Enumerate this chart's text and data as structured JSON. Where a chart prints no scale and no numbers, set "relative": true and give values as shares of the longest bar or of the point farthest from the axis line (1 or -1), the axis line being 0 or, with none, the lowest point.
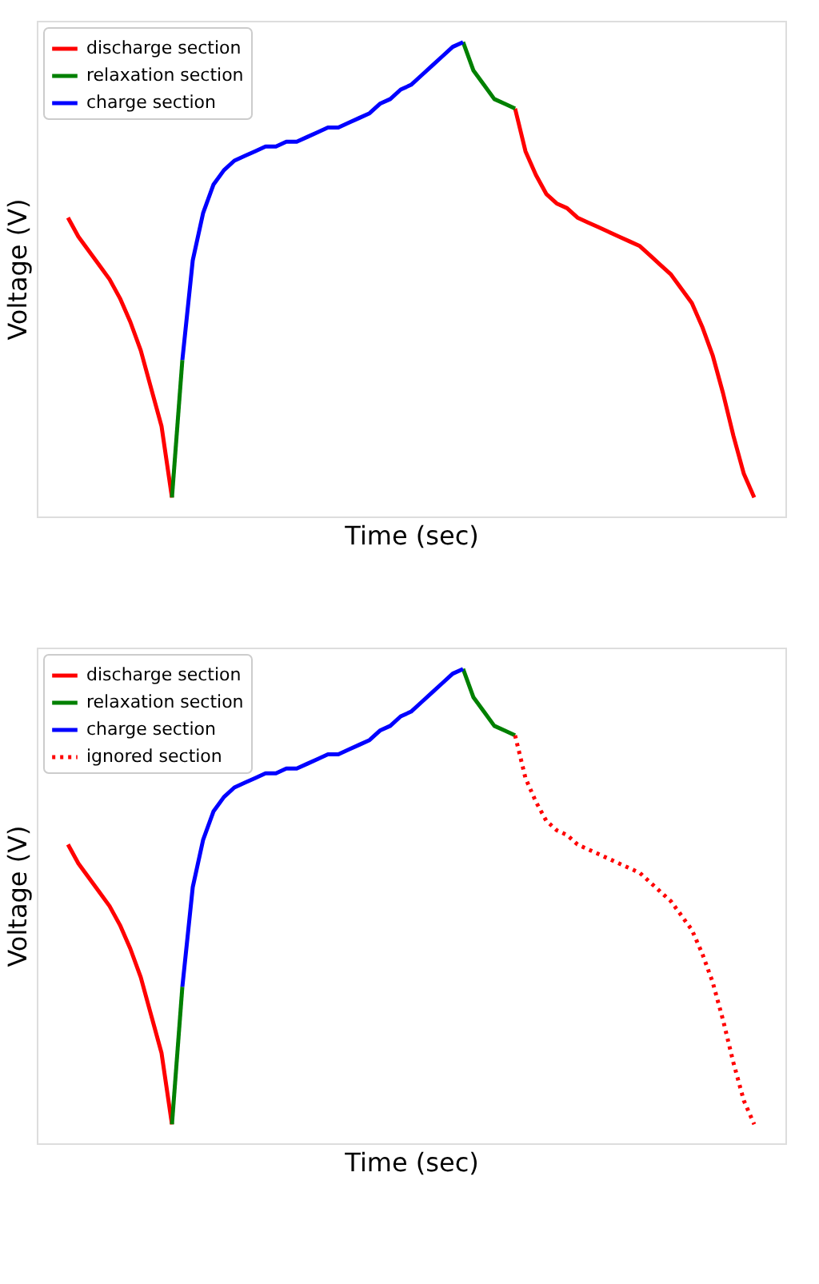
{
  "chart_data": [
    {
      "type": "line",
      "relative": true,
      "xlabel": "Time (sec)",
      "ylabel": "Voltage (V)",
      "legend": "top left",
      "grid": false,
      "tick_labels": false,
      "categories": [
        null,
        null,
        null,
        null,
        null,
        null,
        null,
        null,
        null,
        null,
        null,
        null,
        null,
        null,
        null,
        null,
        null,
        null,
        null,
        null,
        null,
        null,
        null,
        null,
        null,
        null,
        null,
        null,
        null,
        null,
        null,
        null,
        null,
        null,
        null,
        null,
        null,
        null,
        null,
        null,
        null,
        null,
        null,
        null,
        null,
        null,
        null,
        null,
        null,
        null,
        null,
        null,
        null,
        null,
        null,
        null,
        null,
        null,
        null,
        null,
        null,
        null,
        null,
        null,
        null,
        null,
        null
      ],
      "series": [
        {
          "name": "discharge section",
          "color": "#ff0000",
          "line_style": "solid",
          "values": [
            0.63,
            0.59,
            0.56,
            0.53,
            0.5,
            0.46,
            0.41,
            0.35,
            0.27,
            0.19,
            0.04,
            null,
            null,
            null,
            null,
            null,
            null,
            null,
            null,
            null,
            null,
            null,
            null,
            null,
            null,
            null,
            null,
            null,
            null,
            null,
            null,
            null,
            null,
            null,
            null,
            null,
            null,
            null,
            null,
            null,
            null,
            null,
            null,
            0.86,
            0.77,
            0.72,
            0.68,
            0.66,
            0.65,
            0.63,
            0.62,
            0.61,
            0.6,
            0.59,
            0.58,
            0.57,
            0.55,
            0.53,
            0.51,
            0.48,
            0.45,
            0.4,
            0.34,
            0.26,
            0.17,
            0.09,
            0.04
          ]
        },
        {
          "name": "relaxation section",
          "color": "#008000",
          "line_style": "solid",
          "values": [
            null,
            null,
            null,
            null,
            null,
            null,
            null,
            null,
            null,
            null,
            0.04,
            0.33,
            null,
            null,
            null,
            null,
            null,
            null,
            null,
            null,
            null,
            null,
            null,
            null,
            null,
            null,
            null,
            null,
            null,
            null,
            null,
            null,
            null,
            null,
            null,
            null,
            null,
            null,
            1.0,
            0.94,
            0.91,
            0.88,
            0.87,
            0.86,
            null,
            null,
            null,
            null,
            null,
            null,
            null,
            null,
            null,
            null,
            null,
            null,
            null,
            null,
            null,
            null,
            null,
            null,
            null,
            null,
            null,
            null,
            null
          ]
        },
        {
          "name": "charge section",
          "color": "#0000ff",
          "line_style": "solid",
          "values": [
            null,
            null,
            null,
            null,
            null,
            null,
            null,
            null,
            null,
            null,
            null,
            0.33,
            0.54,
            0.64,
            0.7,
            0.73,
            0.75,
            0.76,
            0.77,
            0.78,
            0.78,
            0.79,
            0.79,
            0.8,
            0.81,
            0.82,
            0.82,
            0.83,
            0.84,
            0.85,
            0.87,
            0.88,
            0.9,
            0.91,
            0.93,
            0.95,
            0.97,
            0.99,
            1.0,
            null,
            null,
            null,
            null,
            null,
            null,
            null,
            null,
            null,
            null,
            null,
            null,
            null,
            null,
            null,
            null,
            null,
            null,
            null,
            null,
            null,
            null,
            null,
            null,
            null,
            null,
            null,
            null
          ]
        }
      ]
    },
    {
      "type": "line",
      "relative": true,
      "xlabel": "Time (sec)",
      "ylabel": "Voltage (V)",
      "legend": "top left",
      "grid": false,
      "tick_labels": false,
      "categories": [
        null,
        null,
        null,
        null,
        null,
        null,
        null,
        null,
        null,
        null,
        null,
        null,
        null,
        null,
        null,
        null,
        null,
        null,
        null,
        null,
        null,
        null,
        null,
        null,
        null,
        null,
        null,
        null,
        null,
        null,
        null,
        null,
        null,
        null,
        null,
        null,
        null,
        null,
        null,
        null,
        null,
        null,
        null,
        null,
        null,
        null,
        null,
        null,
        null,
        null,
        null,
        null,
        null,
        null,
        null,
        null,
        null,
        null,
        null,
        null,
        null,
        null,
        null,
        null,
        null,
        null,
        null
      ],
      "series": [
        {
          "name": "discharge section",
          "color": "#ff0000",
          "line_style": "solid",
          "values": [
            0.63,
            0.59,
            0.56,
            0.53,
            0.5,
            0.46,
            0.41,
            0.35,
            0.27,
            0.19,
            0.04,
            null,
            null,
            null,
            null,
            null,
            null,
            null,
            null,
            null,
            null,
            null,
            null,
            null,
            null,
            null,
            null,
            null,
            null,
            null,
            null,
            null,
            null,
            null,
            null,
            null,
            null,
            null,
            null,
            null,
            null,
            null,
            null,
            null,
            null,
            null,
            null,
            null,
            null,
            null,
            null,
            null,
            null,
            null,
            null,
            null,
            null,
            null,
            null,
            null,
            null,
            null,
            null,
            null,
            null,
            null,
            null
          ]
        },
        {
          "name": "relaxation section",
          "color": "#008000",
          "line_style": "solid",
          "values": [
            null,
            null,
            null,
            null,
            null,
            null,
            null,
            null,
            null,
            null,
            0.04,
            0.33,
            null,
            null,
            null,
            null,
            null,
            null,
            null,
            null,
            null,
            null,
            null,
            null,
            null,
            null,
            null,
            null,
            null,
            null,
            null,
            null,
            null,
            null,
            null,
            null,
            null,
            null,
            1.0,
            0.94,
            0.91,
            0.88,
            0.87,
            0.86,
            null,
            null,
            null,
            null,
            null,
            null,
            null,
            null,
            null,
            null,
            null,
            null,
            null,
            null,
            null,
            null,
            null,
            null,
            null,
            null,
            null,
            null,
            null
          ]
        },
        {
          "name": "charge section",
          "color": "#0000ff",
          "line_style": "solid",
          "values": [
            null,
            null,
            null,
            null,
            null,
            null,
            null,
            null,
            null,
            null,
            null,
            0.33,
            0.54,
            0.64,
            0.7,
            0.73,
            0.75,
            0.76,
            0.77,
            0.78,
            0.78,
            0.79,
            0.79,
            0.8,
            0.81,
            0.82,
            0.82,
            0.83,
            0.84,
            0.85,
            0.87,
            0.88,
            0.9,
            0.91,
            0.93,
            0.95,
            0.97,
            0.99,
            1.0,
            null,
            null,
            null,
            null,
            null,
            null,
            null,
            null,
            null,
            null,
            null,
            null,
            null,
            null,
            null,
            null,
            null,
            null,
            null,
            null,
            null,
            null,
            null,
            null,
            null,
            null,
            null,
            null
          ]
        },
        {
          "name": "ignored section",
          "color": "#ff0000",
          "line_style": "dotted",
          "values": [
            null,
            null,
            null,
            null,
            null,
            null,
            null,
            null,
            null,
            null,
            null,
            null,
            null,
            null,
            null,
            null,
            null,
            null,
            null,
            null,
            null,
            null,
            null,
            null,
            null,
            null,
            null,
            null,
            null,
            null,
            null,
            null,
            null,
            null,
            null,
            null,
            null,
            null,
            null,
            null,
            null,
            null,
            null,
            0.86,
            0.77,
            0.72,
            0.68,
            0.66,
            0.65,
            0.63,
            0.62,
            0.61,
            0.6,
            0.59,
            0.58,
            0.57,
            0.55,
            0.53,
            0.51,
            0.48,
            0.45,
            0.4,
            0.34,
            0.26,
            0.17,
            0.09,
            0.04
          ]
        }
      ]
    }
  ]
}
